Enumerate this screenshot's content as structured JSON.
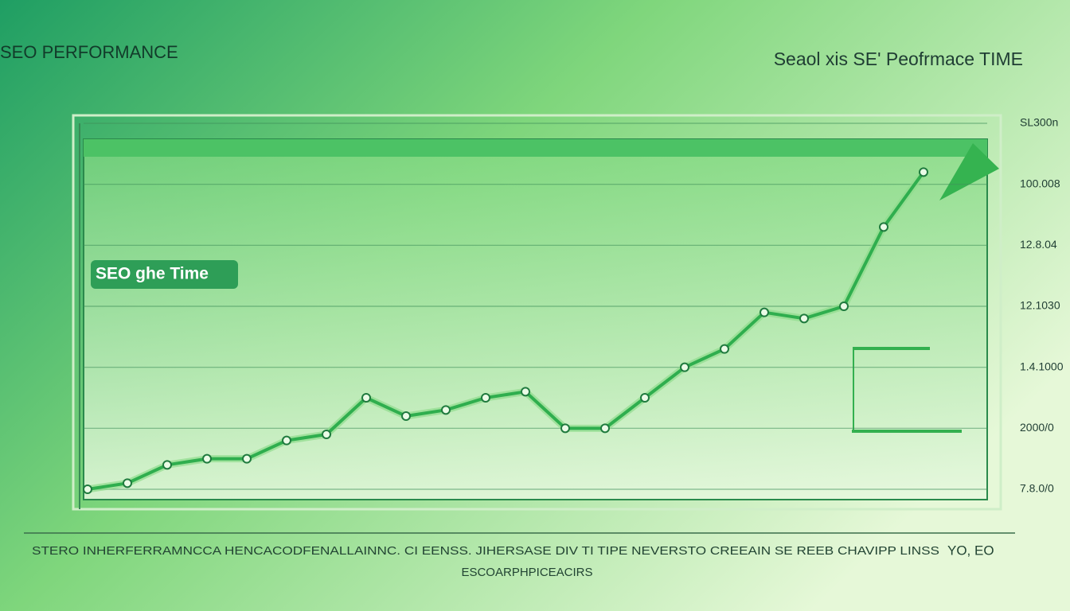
{
  "chart_data": {
    "type": "line",
    "title": "SEO PERFORMANCE",
    "subtitle": "Seaol xis SE' Peofrmace TIME",
    "annotation": "SEO ghe Time",
    "x_caption": "STERO INHERFERRAMNCCA HENCACODFENALLAINNC.  CI EENSS. JIHERSASE DIV TI TIPE NEVERSTO    CREEAIN SE REEB CHAVIPP LINSS",
    "x_caption_end": "YO, EO",
    "xlabel": "ESCOARPHPICEACIRS",
    "categories": [
      null,
      null,
      null,
      null,
      null,
      null,
      null,
      null,
      null,
      null,
      null,
      null,
      null,
      null,
      null,
      null,
      null,
      null,
      null,
      null,
      null,
      null
    ],
    "values": [
      0,
      0.1,
      0.4,
      0.5,
      0.5,
      0.8,
      0.9,
      1.5,
      1.2,
      1.3,
      1.5,
      1.6,
      1.0,
      1.0,
      1.5,
      2.0,
      2.3,
      2.9,
      2.8,
      3.0,
      4.3,
      5.2
    ],
    "color": "#2fae4e",
    "ylim": [
      0,
      6
    ],
    "yticks": [
      {
        "value": 0,
        "label": "7.8.0/0"
      },
      {
        "value": 1,
        "label": "2000/0"
      },
      {
        "value": 2,
        "label": "1.4.1000"
      },
      {
        "value": 3,
        "label": "12.1030"
      },
      {
        "value": 4,
        "label": "12.8.04"
      },
      {
        "value": 5,
        "label": "100.008"
      },
      {
        "value": 6,
        "label": "SL300n"
      }
    ],
    "grid": true
  }
}
